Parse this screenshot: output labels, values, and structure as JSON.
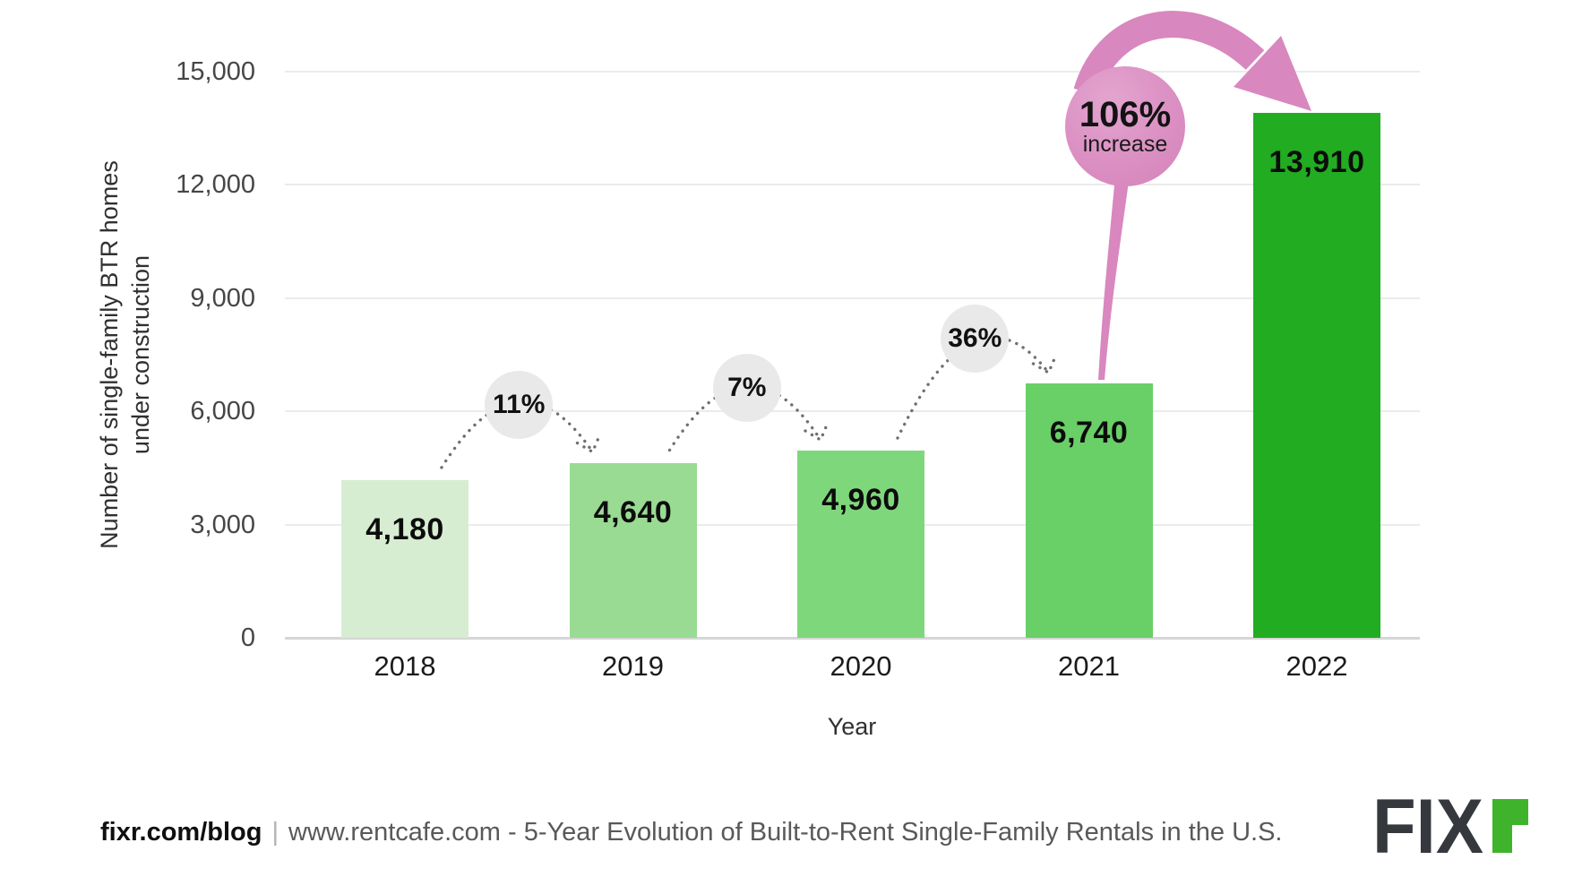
{
  "chart_data": {
    "type": "bar",
    "title": "",
    "categories": [
      "2018",
      "2019",
      "2020",
      "2021",
      "2022"
    ],
    "values": [
      4180,
      4640,
      4960,
      6740,
      13910
    ],
    "value_labels": [
      "4,180",
      "4,640",
      "4,960",
      "6,740",
      "13,910"
    ],
    "bar_colors": [
      "#D6EDD1",
      "#99DB93",
      "#7FD77C",
      "#69CF67",
      "#21AC21"
    ],
    "xlabel": "Year",
    "ylabel": "Number of single-family BTR homes under construction",
    "ylabel_lines": [
      "Number of single-family BTR homes",
      "under construction"
    ],
    "ylim": [
      0,
      15000
    ],
    "ytick_step": 3000,
    "ytick_labels": [
      "0",
      "3,000",
      "6,000",
      "9,000",
      "12,000",
      "15,000"
    ],
    "grid": true,
    "legend_position": "none",
    "increase_annotations": [
      {
        "label": "11%",
        "between": [
          "2018",
          "2019"
        ],
        "style": "gray"
      },
      {
        "label": "7%",
        "between": [
          "2019",
          "2020"
        ],
        "style": "gray"
      },
      {
        "label": "36%",
        "between": [
          "2020",
          "2021"
        ],
        "style": "gray"
      },
      {
        "label": "106%",
        "sublabel": "increase",
        "between": [
          "2021",
          "2022"
        ],
        "style": "pink"
      }
    ]
  },
  "footer": {
    "source_bold": "fixr.com/blog",
    "separator": "|",
    "attribution": "www.rentcafe.com - 5-Year Evolution of Built-to-Rent Single-Family Rentals in the U.S.",
    "logo": {
      "text": "FIX",
      "stylized_letter": "r"
    }
  },
  "colors": {
    "bubble_gray": "#E9E9E9",
    "bubble_pink": "#DC92C3",
    "arrow_pink": "#D987BF",
    "dotted_arrow": "#6F6F6F",
    "gridline": "#EBEBEB",
    "axis_line": "#D6D6D6",
    "logo_dark": "#35383C",
    "logo_green": "#3FB32B"
  }
}
